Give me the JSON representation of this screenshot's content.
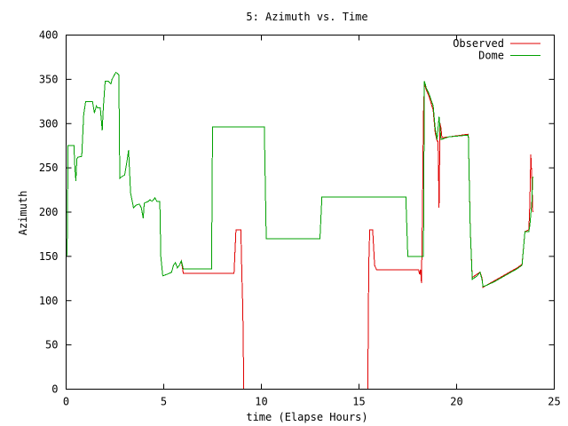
{
  "chart_data": {
    "type": "line",
    "title": "5: Azimuth vs. Time",
    "xlabel": "time (Elapse Hours)",
    "ylabel": "Azimuth",
    "xlim": [
      0,
      25
    ],
    "ylim": [
      0,
      400
    ],
    "xticks": [
      0,
      5,
      10,
      15,
      20,
      25
    ],
    "yticks": [
      0,
      50,
      100,
      150,
      200,
      250,
      300,
      350,
      400
    ],
    "grid": false,
    "legend_position": "top-right",
    "series": [
      {
        "name": "Observed",
        "color": "#e00000",
        "points": [
          [
            0,
            150
          ],
          [
            0.05,
            152
          ],
          [
            0.1,
            275
          ],
          [
            0.4,
            275
          ],
          [
            0.45,
            250
          ],
          [
            0.5,
            235
          ],
          [
            0.55,
            260
          ],
          [
            0.6,
            262
          ],
          [
            0.8,
            263
          ],
          [
            0.9,
            310
          ],
          [
            1.0,
            325
          ],
          [
            1.35,
            325
          ],
          [
            1.45,
            312
          ],
          [
            1.55,
            320
          ],
          [
            1.6,
            318
          ],
          [
            1.75,
            318
          ],
          [
            1.85,
            292
          ],
          [
            1.9,
            316
          ],
          [
            2.0,
            348
          ],
          [
            2.15,
            348
          ],
          [
            2.3,
            345
          ],
          [
            2.35,
            350
          ],
          [
            2.55,
            358
          ],
          [
            2.7,
            355
          ],
          [
            2.75,
            238
          ],
          [
            2.85,
            240
          ],
          [
            3.0,
            242
          ],
          [
            3.1,
            255
          ],
          [
            3.2,
            270
          ],
          [
            3.3,
            222
          ],
          [
            3.45,
            205
          ],
          [
            3.6,
            208
          ],
          [
            3.75,
            209
          ],
          [
            3.85,
            205
          ],
          [
            3.95,
            193
          ],
          [
            4.0,
            210
          ],
          [
            4.2,
            212
          ],
          [
            4.3,
            214
          ],
          [
            4.4,
            212
          ],
          [
            4.55,
            216
          ],
          [
            4.65,
            212
          ],
          [
            4.8,
            212
          ],
          [
            4.85,
            150
          ],
          [
            4.95,
            128
          ],
          [
            5.2,
            130
          ],
          [
            5.4,
            132
          ],
          [
            5.5,
            140
          ],
          [
            5.6,
            143
          ],
          [
            5.7,
            137
          ],
          [
            5.8,
            140
          ],
          [
            5.9,
            145
          ],
          [
            6.0,
            131
          ],
          [
            8.5,
            131
          ],
          [
            8.6,
            131
          ],
          [
            8.7,
            180
          ],
          [
            8.95,
            180
          ],
          [
            9.0,
            130
          ],
          [
            9.05,
            90
          ],
          [
            9.1,
            0
          ],
          [
            15.45,
            0
          ],
          [
            15.5,
            140
          ],
          [
            15.55,
            180
          ],
          [
            15.7,
            180
          ],
          [
            15.8,
            140
          ],
          [
            15.9,
            135
          ],
          [
            18.05,
            135
          ],
          [
            18.1,
            130
          ],
          [
            18.15,
            135
          ],
          [
            18.2,
            120
          ],
          [
            18.25,
            200
          ],
          [
            18.3,
            310
          ],
          [
            18.35,
            345
          ],
          [
            18.45,
            338
          ],
          [
            18.6,
            330
          ],
          [
            18.8,
            315
          ],
          [
            18.9,
            290
          ],
          [
            19.0,
            280
          ],
          [
            19.05,
            280
          ],
          [
            19.1,
            205
          ],
          [
            19.15,
            300
          ],
          [
            19.2,
            295
          ],
          [
            19.25,
            284
          ],
          [
            19.6,
            285
          ],
          [
            20.6,
            288
          ],
          [
            20.7,
            180
          ],
          [
            20.8,
            126
          ],
          [
            21.05,
            130
          ],
          [
            21.2,
            132
          ],
          [
            21.3,
            126
          ],
          [
            21.35,
            115
          ],
          [
            21.5,
            117
          ],
          [
            21.9,
            122
          ],
          [
            22.3,
            127
          ],
          [
            22.7,
            132
          ],
          [
            23.1,
            137
          ],
          [
            23.35,
            141
          ],
          [
            23.5,
            178
          ],
          [
            23.7,
            180
          ],
          [
            23.75,
            210
          ],
          [
            23.8,
            265
          ],
          [
            23.85,
            240
          ],
          [
            23.9,
            200
          ]
        ]
      },
      {
        "name": "Dome",
        "color": "#00a000",
        "points": [
          [
            0,
            150
          ],
          [
            0.05,
            152
          ],
          [
            0.1,
            275
          ],
          [
            0.4,
            275
          ],
          [
            0.45,
            250
          ],
          [
            0.5,
            235
          ],
          [
            0.55,
            260
          ],
          [
            0.6,
            262
          ],
          [
            0.8,
            263
          ],
          [
            0.9,
            310
          ],
          [
            1.0,
            325
          ],
          [
            1.35,
            325
          ],
          [
            1.45,
            312
          ],
          [
            1.55,
            320
          ],
          [
            1.6,
            318
          ],
          [
            1.75,
            318
          ],
          [
            1.85,
            292
          ],
          [
            1.9,
            316
          ],
          [
            2.0,
            348
          ],
          [
            2.15,
            348
          ],
          [
            2.3,
            345
          ],
          [
            2.35,
            350
          ],
          [
            2.55,
            358
          ],
          [
            2.7,
            355
          ],
          [
            2.75,
            238
          ],
          [
            2.85,
            240
          ],
          [
            3.0,
            242
          ],
          [
            3.1,
            255
          ],
          [
            3.2,
            270
          ],
          [
            3.3,
            222
          ],
          [
            3.45,
            205
          ],
          [
            3.6,
            208
          ],
          [
            3.75,
            209
          ],
          [
            3.85,
            205
          ],
          [
            3.95,
            193
          ],
          [
            4.0,
            210
          ],
          [
            4.2,
            212
          ],
          [
            4.3,
            214
          ],
          [
            4.4,
            212
          ],
          [
            4.55,
            216
          ],
          [
            4.65,
            212
          ],
          [
            4.8,
            212
          ],
          [
            4.85,
            150
          ],
          [
            4.95,
            128
          ],
          [
            5.2,
            130
          ],
          [
            5.4,
            132
          ],
          [
            5.5,
            140
          ],
          [
            5.6,
            143
          ],
          [
            5.7,
            137
          ],
          [
            5.8,
            140
          ],
          [
            5.9,
            145
          ],
          [
            6.0,
            136
          ],
          [
            7.45,
            136
          ],
          [
            7.5,
            296
          ],
          [
            10.15,
            296
          ],
          [
            10.25,
            170
          ],
          [
            13.0,
            170
          ],
          [
            13.1,
            217
          ],
          [
            17.4,
            217
          ],
          [
            17.5,
            150
          ],
          [
            18.3,
            150
          ],
          [
            18.35,
            348
          ],
          [
            18.45,
            340
          ],
          [
            18.6,
            333
          ],
          [
            18.8,
            320
          ],
          [
            18.9,
            295
          ],
          [
            19.0,
            282
          ],
          [
            19.1,
            308
          ],
          [
            19.2,
            282
          ],
          [
            19.6,
            285
          ],
          [
            20.6,
            287
          ],
          [
            20.7,
            180
          ],
          [
            20.8,
            124
          ],
          [
            21.05,
            128
          ],
          [
            21.2,
            132
          ],
          [
            21.3,
            124
          ],
          [
            21.35,
            116
          ],
          [
            21.5,
            117
          ],
          [
            21.9,
            121
          ],
          [
            22.3,
            126
          ],
          [
            22.7,
            131
          ],
          [
            23.1,
            136
          ],
          [
            23.35,
            140
          ],
          [
            23.5,
            178
          ],
          [
            23.7,
            178
          ],
          [
            23.75,
            185
          ],
          [
            23.85,
            210
          ],
          [
            23.9,
            240
          ]
        ]
      }
    ]
  }
}
